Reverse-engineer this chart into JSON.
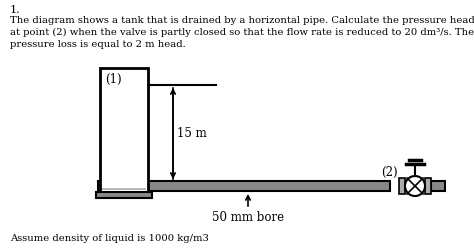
{
  "title_number": "1.",
  "problem_text_line1": "The diagram shows a tank that is drained by a horizontal pipe. Calculate the pressure head",
  "problem_text_line2": "at point (2) when the valve is partly closed so that the flow rate is reduced to 20 dm³/s. The",
  "problem_text_line3": "pressure loss is equal to 2 m head.",
  "assume_text": "Assume density of liquid is 1000 kg/m3",
  "label_15m": "15 m",
  "label_50mm": "50 mm bore",
  "label_point1": "(1)",
  "label_point2": "(2)",
  "bg_color": "#ffffff",
  "tank_fill_color": "#b8b8b8",
  "tank_line_color": "#000000",
  "pipe_color": "#888888",
  "pipe_dark": "#555555"
}
